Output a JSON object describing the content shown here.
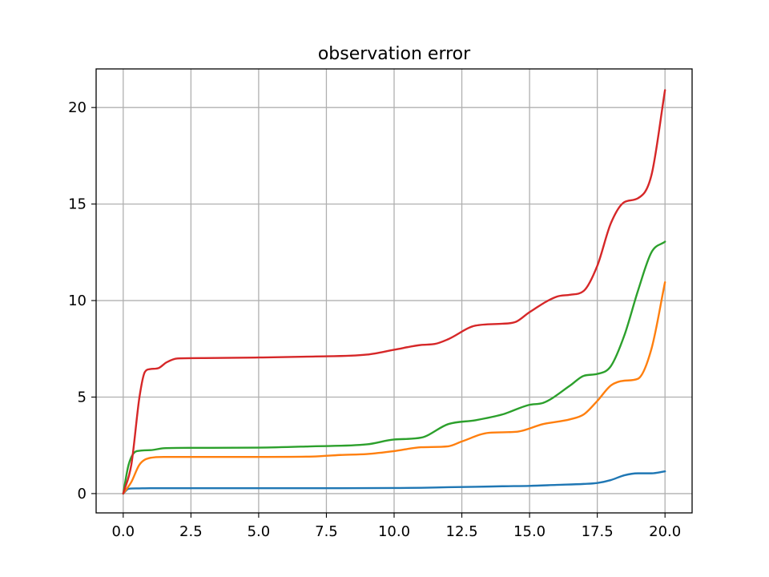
{
  "chart_data": {
    "type": "line",
    "title": "observation error",
    "xlabel": "",
    "ylabel": "",
    "xlim": [
      -1.0,
      21.0
    ],
    "ylim": [
      -1.0,
      22.0
    ],
    "grid": true,
    "x_ticks": [
      0.0,
      2.5,
      5.0,
      7.5,
      10.0,
      12.5,
      15.0,
      17.5,
      20.0
    ],
    "x_tick_labels": [
      "0.0",
      "2.5",
      "5.0",
      "7.5",
      "10.0",
      "12.5",
      "15.0",
      "17.5",
      "20.0"
    ],
    "y_ticks": [
      0,
      5,
      10,
      15,
      20
    ],
    "y_tick_labels": [
      "0",
      "5",
      "10",
      "15",
      "20"
    ],
    "series": [
      {
        "color": "#1f77b4",
        "x": [
          0,
          0.2,
          0.5,
          1,
          2,
          4,
          6,
          8,
          10,
          11,
          12,
          13,
          14,
          15,
          16,
          17,
          17.5,
          18,
          18.5,
          19,
          19.5,
          20
        ],
        "y": [
          0,
          0.25,
          0.27,
          0.28,
          0.28,
          0.28,
          0.28,
          0.28,
          0.29,
          0.3,
          0.33,
          0.35,
          0.38,
          0.4,
          0.45,
          0.5,
          0.55,
          0.7,
          0.95,
          1.05,
          1.05,
          1.15
        ]
      },
      {
        "color": "#ff7f0e",
        "x": [
          0,
          0.3,
          0.6,
          1,
          1.5,
          2.5,
          5,
          7,
          8,
          9,
          10,
          11,
          12,
          12.5,
          13.5,
          14.5,
          15.5,
          16.5,
          17,
          17.5,
          18,
          18.5,
          19,
          19.5,
          20
        ],
        "y": [
          0,
          0.6,
          1.5,
          1.85,
          1.9,
          1.9,
          1.9,
          1.92,
          2.0,
          2.05,
          2.2,
          2.4,
          2.45,
          2.7,
          3.15,
          3.2,
          3.6,
          3.85,
          4.1,
          4.8,
          5.6,
          5.85,
          5.95,
          7.5,
          10.95
        ]
      },
      {
        "color": "#2ca02c",
        "x": [
          0,
          0.2,
          0.5,
          1,
          1.5,
          2.5,
          5,
          7,
          9,
          10,
          11,
          12,
          13,
          14,
          15,
          15.5,
          16.5,
          17,
          17.5,
          18,
          18.5,
          19,
          19.5,
          20
        ],
        "y": [
          0,
          1.5,
          2.2,
          2.25,
          2.35,
          2.37,
          2.38,
          2.45,
          2.55,
          2.8,
          2.9,
          3.6,
          3.8,
          4.1,
          4.6,
          4.7,
          5.6,
          6.1,
          6.2,
          6.6,
          8.2,
          10.5,
          12.5,
          13.05
        ]
      },
      {
        "color": "#d62728",
        "x": [
          0,
          0.3,
          0.6,
          0.8,
          1,
          1.3,
          1.6,
          2,
          3,
          5,
          7,
          9,
          10,
          11,
          11.5,
          12,
          13,
          14,
          14.5,
          15,
          16,
          16.5,
          17,
          17.5,
          18,
          18.5,
          19,
          19.5,
          20
        ],
        "y": [
          0,
          1.5,
          5.0,
          6.3,
          6.45,
          6.5,
          6.8,
          7.0,
          7.02,
          7.05,
          7.1,
          7.2,
          7.45,
          7.7,
          7.75,
          8.0,
          8.7,
          8.8,
          8.9,
          9.4,
          10.2,
          10.3,
          10.5,
          11.8,
          14.0,
          15.1,
          15.3,
          16.5,
          20.9
        ]
      }
    ]
  }
}
